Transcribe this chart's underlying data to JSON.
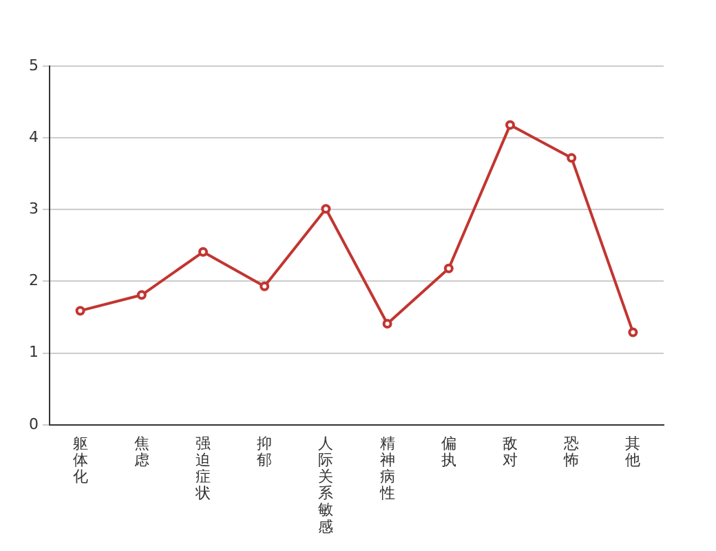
{
  "chart_data": {
    "type": "line",
    "categories": [
      "躯体化",
      "焦虑",
      "强迫症状",
      "抑郁",
      "人际关系敏感",
      "精神病性",
      "偏执",
      "敌对",
      "恐怖",
      "其他"
    ],
    "series": [
      {
        "color": "#c23531",
        "values": [
          1.59,
          1.81,
          2.41,
          1.93,
          3.01,
          1.41,
          2.18,
          4.18,
          3.72,
          1.29
        ]
      }
    ],
    "ylim": [
      0,
      5
    ],
    "yticks": [
      0,
      1,
      2,
      3,
      4,
      5
    ],
    "grid": "y",
    "legend": false,
    "marker": "circle",
    "line_style": "solid"
  }
}
